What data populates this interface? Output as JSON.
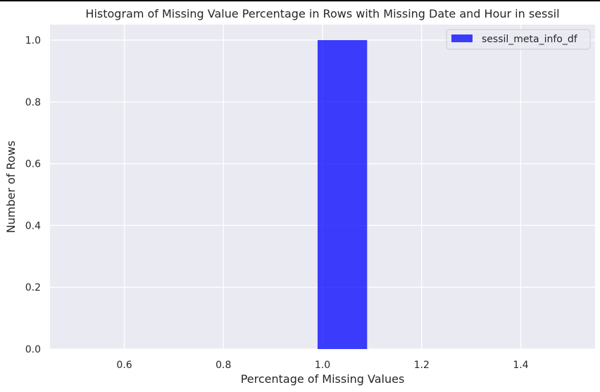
{
  "chart_data": {
    "type": "bar",
    "title": "Histogram of Missing Value Percentage in Rows with Missing Date and Hour in sessil",
    "xlabel": "Percentage of Missing Values",
    "ylabel": "Number of Rows",
    "xlim": [
      0.45,
      1.55
    ],
    "ylim": [
      0.0,
      1.05
    ],
    "xticks": [
      0.6,
      0.8,
      1.0,
      1.2,
      1.4
    ],
    "yticks": [
      0.0,
      0.2,
      0.4,
      0.6,
      0.8,
      1.0
    ],
    "xtick_labels": [
      "0.6",
      "0.8",
      "1.0",
      "1.2",
      "1.4"
    ],
    "ytick_labels": [
      "0.0",
      "0.2",
      "0.4",
      "0.6",
      "0.8",
      "1.0"
    ],
    "grid": true,
    "legend_position": "top-right",
    "series": [
      {
        "name": "sessil_meta_info_df",
        "color": "#0000ff",
        "bins": [
          {
            "x_start": 0.99,
            "x_end": 1.09,
            "value": 1.0
          }
        ]
      }
    ]
  },
  "colors": {
    "plot_background": "#eaeaf2",
    "grid": "#ffffff",
    "bar": "#0000ff"
  }
}
